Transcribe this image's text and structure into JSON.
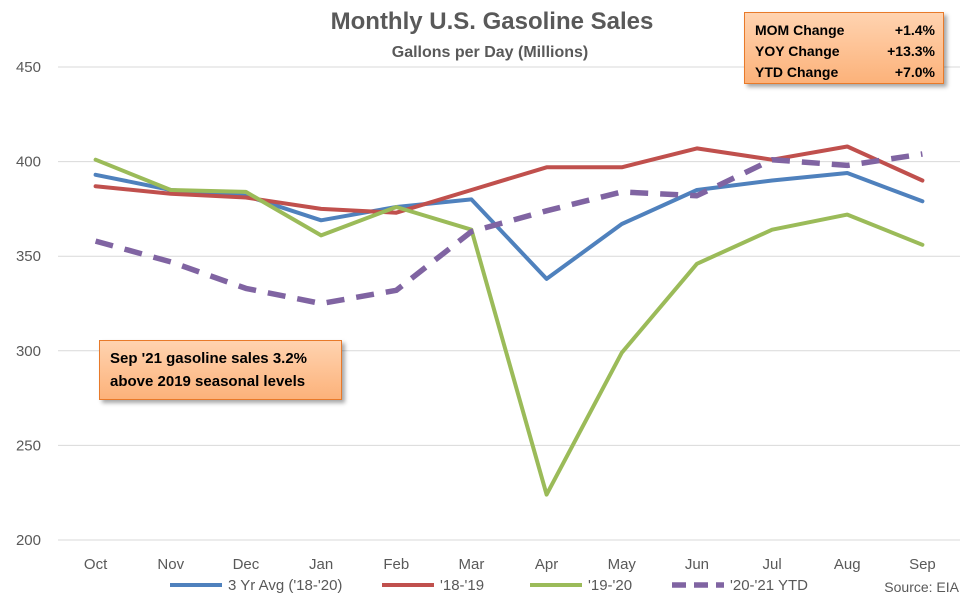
{
  "chart_data": {
    "type": "line",
    "title": "Monthly U.S. Gasoline Sales",
    "subtitle": "Gallons per Day (Millions)",
    "categories": [
      "Oct",
      "Nov",
      "Dec",
      "Jan",
      "Feb",
      "Mar",
      "Apr",
      "May",
      "Jun",
      "Jul",
      "Aug",
      "Sep"
    ],
    "ylim": [
      200,
      450
    ],
    "yticks": [
      200,
      250,
      300,
      350,
      400,
      450
    ],
    "grid": true,
    "legend_position": "bottom",
    "series": [
      {
        "name": "3 Yr Avg ('18-'20)",
        "color": "#4f81bd",
        "dash": "solid",
        "values": [
          393,
          385,
          382,
          369,
          376,
          380,
          338,
          367,
          385,
          390,
          394,
          379
        ]
      },
      {
        "name": "'18-'19",
        "color": "#c0504d",
        "dash": "solid",
        "values": [
          387,
          383,
          381,
          375,
          373,
          385,
          397,
          397,
          407,
          401,
          408,
          390
        ]
      },
      {
        "name": "'19-'20",
        "color": "#9bbb59",
        "dash": "solid",
        "values": [
          401,
          385,
          384,
          361,
          376,
          364,
          224,
          299,
          346,
          364,
          372,
          356
        ]
      },
      {
        "name": "'20-'21 YTD",
        "color": "#8064a2",
        "dash": "dashed",
        "values": [
          358,
          347,
          333,
          325,
          332,
          363,
          374,
          384,
          382,
          401,
          398,
          404
        ]
      }
    ],
    "source": "Source: EIA"
  },
  "stats": [
    {
      "label": "MOM Change",
      "value": "+1.4%"
    },
    {
      "label": "YOY Change",
      "value": "+13.3%"
    },
    {
      "label": "YTD Change",
      "value": "+7.0%"
    }
  ],
  "annotation": {
    "line1": "Sep '21 gasoline sales 3.2%",
    "line2": "above 2019 seasonal levels"
  }
}
